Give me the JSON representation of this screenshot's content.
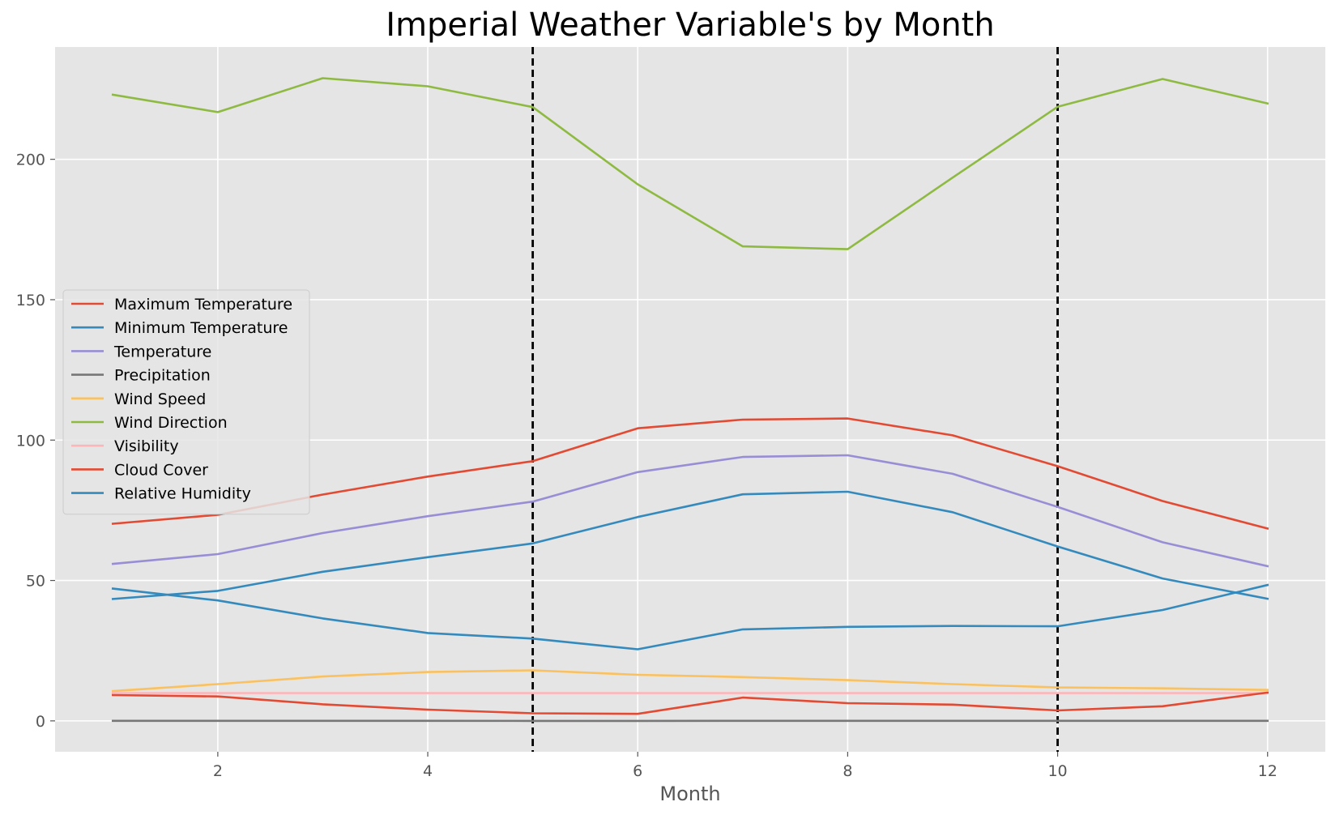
{
  "chart_data": {
    "type": "line",
    "title": "Imperial Weather Variable's by Month",
    "xlabel": "Month",
    "ylabel": "",
    "xlim": [
      0.45,
      12.55
    ],
    "ylim": [
      -11,
      240
    ],
    "xticks": [
      2,
      4,
      6,
      8,
      10,
      12
    ],
    "yticks": [
      0,
      50,
      100,
      150,
      200
    ],
    "grid": true,
    "legend_position": "center-left",
    "vlines": [
      5,
      10
    ],
    "vline_style": {
      "color": "#000000",
      "dash": "dashed"
    },
    "x": [
      1,
      2,
      3,
      4,
      5,
      6,
      7,
      8,
      9,
      10,
      11,
      12
    ],
    "series": [
      {
        "name": "Maximum Temperature",
        "color": "#E24A33",
        "values": [
          70.2,
          73.4,
          80.6,
          87.0,
          92.5,
          104.2,
          107.3,
          107.7,
          101.7,
          90.7,
          78.3,
          68.5
        ]
      },
      {
        "name": "Minimum Temperature",
        "color": "#348ABD",
        "values": [
          43.4,
          46.3,
          53.1,
          58.3,
          63.2,
          72.6,
          80.7,
          81.6,
          74.3,
          62.1,
          50.7,
          43.5
        ]
      },
      {
        "name": "Temperature",
        "color": "#988ED5",
        "values": [
          55.9,
          59.4,
          66.9,
          72.9,
          78.1,
          88.6,
          94.0,
          94.6,
          88.0,
          76.2,
          63.6,
          55.1
        ]
      },
      {
        "name": "Precipitation",
        "color": "#777777",
        "values": [
          0.03,
          0.03,
          0.02,
          0.01,
          0.0,
          0.0,
          0.02,
          0.03,
          0.03,
          0.01,
          0.01,
          0.03
        ]
      },
      {
        "name": "Wind Speed",
        "color": "#FBC15E",
        "values": [
          10.6,
          13.1,
          15.8,
          17.4,
          18.0,
          16.4,
          15.6,
          14.5,
          13.1,
          11.9,
          11.6,
          11.0
        ]
      },
      {
        "name": "Wind Direction",
        "color": "#8EBA42",
        "values": [
          223.0,
          216.8,
          228.9,
          226.0,
          218.6,
          191.1,
          169.0,
          168.0,
          193.5,
          218.7,
          228.6,
          219.9
        ]
      },
      {
        "name": "Visibility",
        "color": "#FFB5B8",
        "values": [
          9.9,
          9.9,
          9.9,
          9.9,
          9.9,
          9.9,
          9.9,
          9.9,
          9.9,
          9.9,
          9.9,
          9.9
        ]
      },
      {
        "name": "Cloud Cover",
        "color": "#E24A33",
        "values": [
          9.2,
          8.7,
          5.9,
          4.0,
          2.7,
          2.5,
          8.3,
          6.3,
          5.8,
          3.7,
          5.2,
          10.1
        ]
      },
      {
        "name": "Relative Humidity",
        "color": "#348ABD",
        "values": [
          47.1,
          42.9,
          36.5,
          31.3,
          29.3,
          25.5,
          32.6,
          33.5,
          33.8,
          33.7,
          39.5,
          48.4
        ]
      }
    ]
  }
}
